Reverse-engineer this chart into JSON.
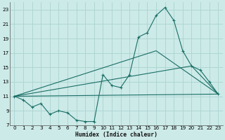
{
  "bg_color": "#cceae8",
  "grid_color": "#aad4d0",
  "line_color": "#1a6e65",
  "xlabel": "Humidex (Indice chaleur)",
  "xlim": [
    -0.5,
    23.5
  ],
  "ylim": [
    7,
    24
  ],
  "yticks": [
    7,
    9,
    11,
    13,
    15,
    17,
    19,
    21,
    23
  ],
  "xticks": [
    0,
    1,
    2,
    3,
    4,
    5,
    6,
    7,
    8,
    9,
    10,
    11,
    12,
    13,
    14,
    15,
    16,
    17,
    18,
    19,
    20,
    21,
    22,
    23
  ],
  "main_x": [
    0,
    1,
    2,
    3,
    4,
    5,
    6,
    7,
    8,
    9,
    10,
    11,
    12,
    13,
    14,
    15,
    16,
    17,
    18,
    19,
    20,
    21,
    22,
    23
  ],
  "main_y": [
    11.0,
    10.5,
    9.5,
    10.0,
    8.5,
    9.0,
    8.7,
    7.7,
    7.5,
    7.5,
    14.0,
    12.5,
    12.2,
    14.0,
    19.2,
    19.8,
    22.2,
    23.3,
    21.5,
    17.3,
    15.2,
    14.6,
    13.0,
    11.3
  ],
  "line1_x": [
    0,
    23
  ],
  "line1_y": [
    11.0,
    11.3
  ],
  "line2_x": [
    0,
    16,
    23
  ],
  "line2_y": [
    11.0,
    17.3,
    11.3
  ],
  "line3_x": [
    0,
    20,
    23
  ],
  "line3_y": [
    11.0,
    15.2,
    11.3
  ]
}
